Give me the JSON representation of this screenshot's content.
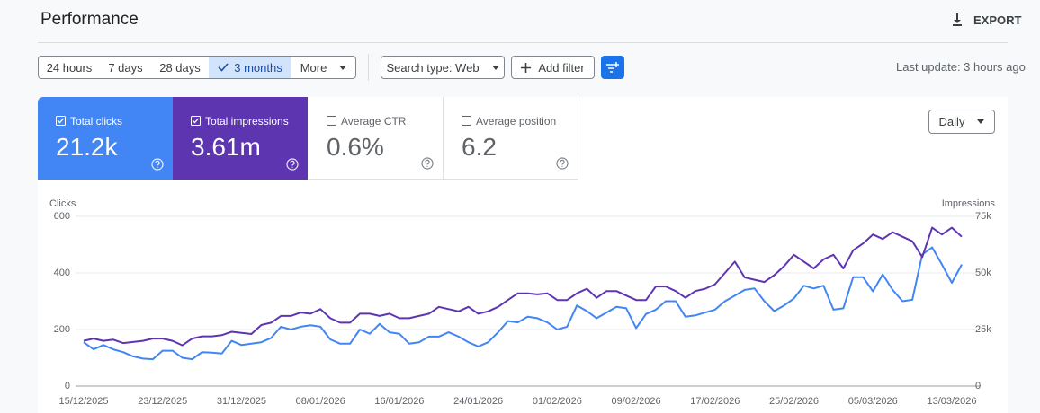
{
  "header": {
    "title": "Performance",
    "export": "EXPORT"
  },
  "filters": {
    "ranges": [
      "24 hours",
      "7 days",
      "28 days",
      "3 months"
    ],
    "more": "More",
    "search_type": "Search type: Web",
    "add_filter": "Add filter",
    "last_update": "Last update: 3 hours ago"
  },
  "metrics": [
    {
      "label": "Total clicks",
      "value": "21.2k"
    },
    {
      "label": "Total impressions",
      "value": "3.61m"
    },
    {
      "label": "Average CTR",
      "value": "0.6%"
    },
    {
      "label": "Average position",
      "value": "6.2"
    }
  ],
  "granularity": "Daily",
  "chart_data": {
    "type": "line",
    "y_label": "Clicks",
    "y2_label": "Impressions",
    "categories": [
      "15/12/2025",
      null,
      null,
      null,
      null,
      null,
      null,
      null,
      "23/12/2025",
      null,
      null,
      null,
      null,
      null,
      null,
      null,
      "31/12/2025",
      null,
      null,
      null,
      null,
      null,
      null,
      null,
      "08/01/2026",
      null,
      null,
      null,
      null,
      null,
      null,
      null,
      "16/01/2026",
      null,
      null,
      null,
      null,
      null,
      null,
      null,
      "24/01/2026",
      null,
      null,
      null,
      null,
      null,
      null,
      null,
      "01/02/2026",
      null,
      null,
      null,
      null,
      null,
      null,
      null,
      "09/02/2026",
      null,
      null,
      null,
      null,
      null,
      null,
      null,
      "17/02/2026",
      null,
      null,
      null,
      null,
      null,
      null,
      null,
      "25/02/2026",
      null,
      null,
      null,
      null,
      null,
      null,
      null,
      "05/03/2026",
      null,
      null,
      null,
      null,
      null,
      null,
      null,
      "13/03/2026",
      null
    ],
    "series": [
      {
        "color": "#4285f4",
        "axis": "y",
        "values": [
          155,
          130,
          145,
          130,
          120,
          105,
          97,
          95,
          125,
          125,
          100,
          95,
          120,
          118,
          115,
          160,
          145,
          150,
          155,
          170,
          210,
          200,
          210,
          215,
          210,
          165,
          150,
          150,
          200,
          185,
          220,
          190,
          185,
          150,
          155,
          175,
          175,
          190,
          175,
          155,
          140,
          155,
          190,
          230,
          225,
          245,
          240,
          225,
          200,
          210,
          285,
          265,
          240,
          260,
          280,
          275,
          205,
          255,
          270,
          300,
          300,
          245,
          250,
          260,
          270,
          300,
          320,
          340,
          345,
          300,
          265,
          285,
          310,
          355,
          345,
          355,
          270,
          275,
          385,
          385,
          335,
          395,
          340,
          300,
          305,
          465,
          490,
          430,
          365,
          430
        ]
      },
      {
        "color": "#5e35b1",
        "axis": "y2",
        "values": [
          20000,
          21000,
          20000,
          20500,
          19000,
          19500,
          20000,
          21000,
          21000,
          20000,
          18000,
          21000,
          22000,
          22000,
          22500,
          24000,
          23500,
          23000,
          27000,
          28000,
          31000,
          31000,
          32500,
          32000,
          34000,
          30000,
          28000,
          28000,
          32000,
          32000,
          31000,
          32000,
          30000,
          30000,
          31000,
          32000,
          35000,
          34000,
          33000,
          35000,
          32000,
          33000,
          35000,
          38000,
          41000,
          41000,
          40500,
          41000,
          38000,
          38000,
          41000,
          43000,
          39000,
          42000,
          42000,
          40000,
          38000,
          38000,
          44000,
          44000,
          42000,
          39000,
          42000,
          43000,
          45000,
          50000,
          55000,
          48000,
          47000,
          46000,
          49000,
          53000,
          58000,
          55000,
          52000,
          56000,
          58000,
          52000,
          60000,
          63000,
          67000,
          65000,
          68000,
          66000,
          64000,
          57000,
          70000,
          67000,
          70000,
          66000
        ]
      }
    ],
    "ylim": [
      0,
      600
    ],
    "yticks": [
      0,
      200,
      400,
      600
    ],
    "y2lim": [
      0,
      75000
    ],
    "y2ticks": [
      0,
      {
        "value": 25000,
        "label": "25k"
      },
      {
        "value": 50000,
        "label": "50k"
      },
      {
        "value": 75000,
        "label": "75k"
      }
    ],
    "grid": true
  }
}
